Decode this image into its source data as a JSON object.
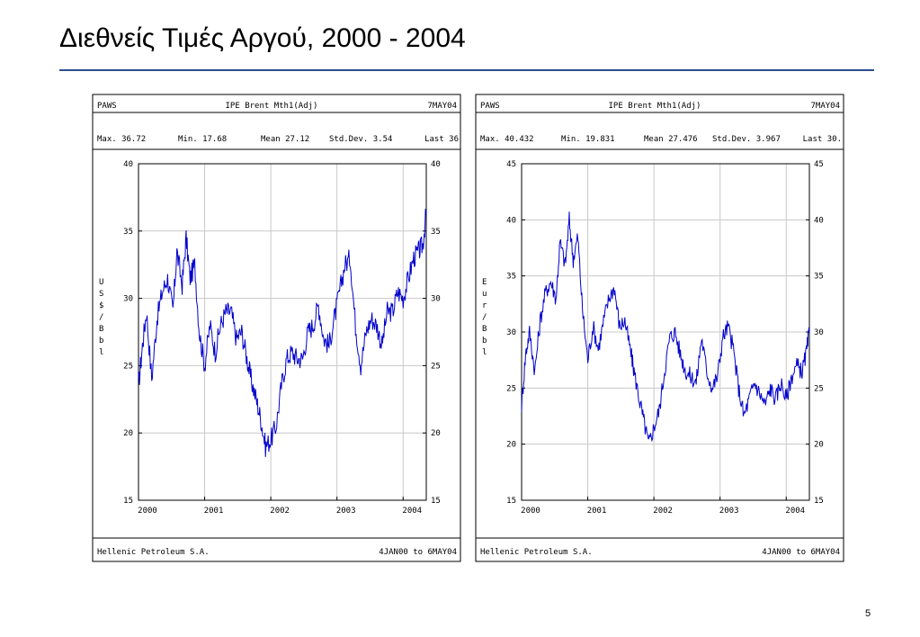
{
  "slide": {
    "title": "Διεθνείς Τιμές Αργού, 2000 - 2004",
    "page_number": "5"
  },
  "colors": {
    "series": "#0000cc",
    "rule": "#2f4f8f",
    "grid": "#c8c8c8"
  },
  "chart_data": [
    {
      "type": "line",
      "header": {
        "left": "PAWS",
        "center": "IPE Brent Mth1(Adj)",
        "right": "7MAY04"
      },
      "stats": {
        "max": "Max. 36.72",
        "min": "Min. 17.68",
        "mean": "Mean 27.12",
        "std": "Std.Dev. 3.54",
        "last": "Last 36"
      },
      "ylabel": "US$/Bbl",
      "ylim": [
        15,
        40
      ],
      "yticks": [
        "15",
        "20",
        "25",
        "30",
        "35",
        "40"
      ],
      "xticks": [
        "2000",
        "2001",
        "2002",
        "2003",
        "2004"
      ],
      "xlim": [
        2000.0,
        2004.35
      ],
      "footer": {
        "left": "Hellenic Petroleum S.A.",
        "right": "4JAN00 to 6MAY04"
      },
      "grid": true,
      "series": [
        {
          "x": [
            2000.0,
            2000.06,
            2000.12,
            2000.2,
            2000.28,
            2000.36,
            2000.44,
            2000.52,
            2000.58,
            2000.66,
            2000.72,
            2000.78,
            2000.85,
            2000.92,
            2001.0,
            2001.08,
            2001.16,
            2001.24,
            2001.32,
            2001.4,
            2001.48,
            2001.56,
            2001.64,
            2001.7,
            2001.78,
            2001.85,
            2001.92,
            2002.0,
            2002.08,
            2002.16,
            2002.24,
            2002.32,
            2002.4,
            2002.48,
            2002.56,
            2002.64,
            2002.72,
            2002.8,
            2002.88,
            2002.96,
            2003.04,
            2003.12,
            2003.2,
            2003.28,
            2003.36,
            2003.44,
            2003.52,
            2003.6,
            2003.68,
            2003.76,
            2003.84,
            2003.92,
            2004.0,
            2004.08,
            2004.16,
            2004.24,
            2004.3,
            2004.35
          ],
          "y": [
            23.5,
            26.5,
            29.0,
            24.0,
            28.5,
            30.5,
            31.5,
            29.0,
            33.5,
            31.0,
            34.5,
            31.5,
            32.5,
            27.5,
            25.0,
            28.0,
            26.0,
            28.0,
            29.0,
            29.0,
            27.0,
            27.5,
            25.5,
            24.0,
            22.5,
            21.0,
            19.0,
            19.5,
            20.5,
            23.5,
            25.5,
            26.0,
            25.5,
            25.5,
            27.5,
            28.0,
            29.5,
            27.0,
            26.5,
            28.5,
            30.5,
            32.5,
            33.0,
            28.0,
            25.0,
            27.5,
            28.5,
            28.0,
            26.5,
            29.0,
            29.0,
            30.5,
            30.0,
            31.5,
            33.0,
            33.5,
            34.0,
            36.5
          ]
        }
      ]
    },
    {
      "type": "line",
      "header": {
        "left": "PAWS",
        "center": "IPE Brent Mth1(Adj)",
        "right": "7MAY04"
      },
      "stats": {
        "max": "Max. 40.432",
        "min": "Min. 19.831",
        "mean": "Mean 27.476",
        "std": "Std.Dev. 3.967",
        "last": "Last 30."
      },
      "ylabel": "Eur/Bbl",
      "ylim": [
        15,
        45
      ],
      "yticks": [
        "15",
        "20",
        "25",
        "30",
        "35",
        "40",
        "45"
      ],
      "xticks": [
        "2000",
        "2001",
        "2002",
        "2003",
        "2004"
      ],
      "xlim": [
        2000.0,
        2004.35
      ],
      "footer": {
        "left": "Hellenic Petroleum S.A.",
        "right": "4JAN00 to 6MAY04"
      },
      "grid": true,
      "series": [
        {
          "x": [
            2000.0,
            2000.06,
            2000.12,
            2000.2,
            2000.28,
            2000.36,
            2000.44,
            2000.52,
            2000.58,
            2000.66,
            2000.72,
            2000.78,
            2000.85,
            2000.92,
            2001.0,
            2001.08,
            2001.16,
            2001.24,
            2001.32,
            2001.4,
            2001.48,
            2001.56,
            2001.64,
            2001.7,
            2001.78,
            2001.85,
            2001.92,
            2002.0,
            2002.08,
            2002.16,
            2002.24,
            2002.32,
            2002.4,
            2002.48,
            2002.56,
            2002.64,
            2002.72,
            2002.8,
            2002.88,
            2002.96,
            2003.04,
            2003.12,
            2003.2,
            2003.28,
            2003.36,
            2003.44,
            2003.52,
            2003.6,
            2003.68,
            2003.76,
            2003.84,
            2003.92,
            2004.0,
            2004.08,
            2004.16,
            2004.24,
            2004.3,
            2004.35
          ],
          "y": [
            23.5,
            28.0,
            30.0,
            26.5,
            31.0,
            33.5,
            34.5,
            33.0,
            38.0,
            36.0,
            40.0,
            36.5,
            38.5,
            32.0,
            27.5,
            30.5,
            28.5,
            31.0,
            33.0,
            34.0,
            30.5,
            31.0,
            28.5,
            26.5,
            24.0,
            22.0,
            20.0,
            21.5,
            23.0,
            26.5,
            29.5,
            30.0,
            28.0,
            26.5,
            26.0,
            25.5,
            29.5,
            26.5,
            25.0,
            26.0,
            29.5,
            30.5,
            28.5,
            25.0,
            22.5,
            24.0,
            25.5,
            24.5,
            23.5,
            25.0,
            24.0,
            25.5,
            24.0,
            26.0,
            27.0,
            26.5,
            28.0,
            30.0
          ]
        }
      ]
    }
  ]
}
